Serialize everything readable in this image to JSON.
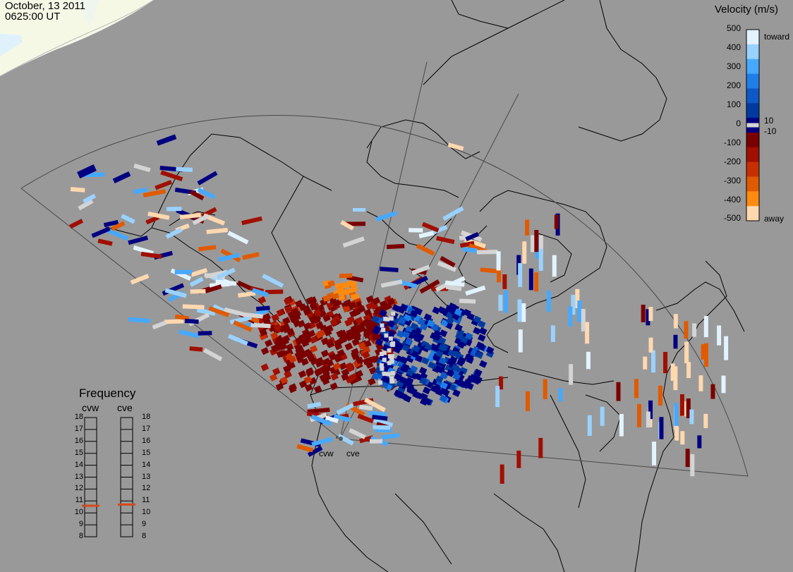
{
  "header": {
    "date": "October, 13 2011",
    "time": "0625:00 UT"
  },
  "velocity_scale": {
    "title": "Velocity (m/s)",
    "ticks": [
      "500",
      "400",
      "300",
      "200",
      "100",
      "10",
      "0",
      "-10",
      "-100",
      "-200",
      "-300",
      "-400",
      "-500"
    ],
    "toward_label": "toward",
    "away_label": "away",
    "colors": [
      "#e2f3ff",
      "#9ad2ff",
      "#46a9ff",
      "#1e7fe8",
      "#0e58c8",
      "#003aa0",
      "#000080",
      "#7a0000",
      "#a00f00",
      "#c63000",
      "#e05a00",
      "#ff8a10",
      "#ffd8b0"
    ],
    "ground_scatter_color": "#d4d4d4"
  },
  "frequency": {
    "title": "Frequency",
    "radars": [
      "cvw",
      "cve"
    ],
    "scale_mhz": [
      "18",
      "17",
      "16",
      "15",
      "14",
      "13",
      "12",
      "11",
      "10",
      "9",
      "8"
    ],
    "operating_mhz": {
      "cvw": 10.6,
      "cve": 10.7
    },
    "marker_color": "#d44a1a"
  },
  "sites": {
    "west": "cvw",
    "east": "cve"
  }
}
